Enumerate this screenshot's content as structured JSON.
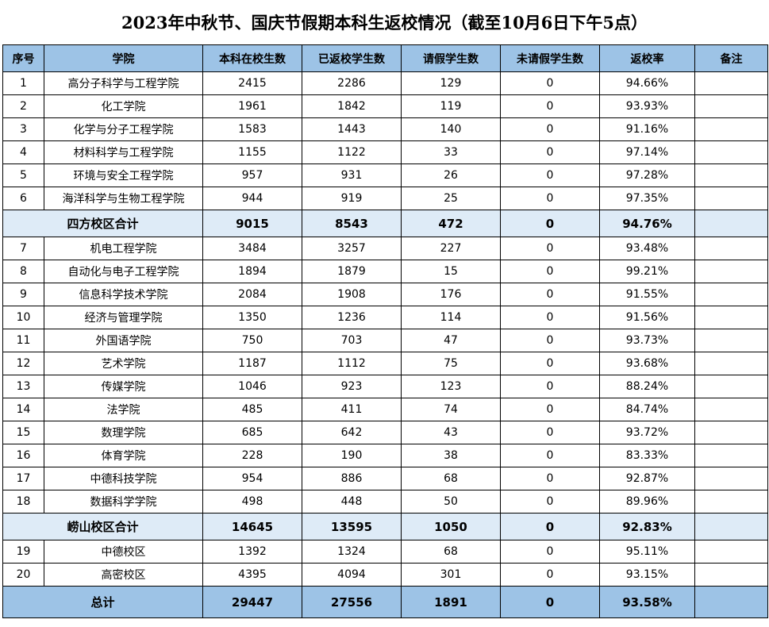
{
  "title": "2023年中秋节、国庆节假期本科生返校情况（截至10月6日下午5点）",
  "headers": [
    "序号",
    "学院",
    "本科在校生数",
    "已返校学生数",
    "请假学生数",
    "未请假学生数",
    "返校率",
    "备注"
  ],
  "group1": [
    [
      "1",
      "高分子科学与工程学院",
      "2415",
      "2286",
      "129",
      "0",
      "94.66%",
      ""
    ],
    [
      "2",
      "化工学院",
      "1961",
      "1842",
      "119",
      "0",
      "93.93%",
      ""
    ],
    [
      "3",
      "化学与分子工程学院",
      "1583",
      "1443",
      "140",
      "0",
      "91.16%",
      ""
    ],
    [
      "4",
      "材料科学与工程学院",
      "1155",
      "1122",
      "33",
      "0",
      "97.14%",
      ""
    ],
    [
      "5",
      "环境与安全工程学院",
      "957",
      "931",
      "26",
      "0",
      "97.28%",
      ""
    ],
    [
      "6",
      "海洋科学与生物工程学院",
      "944",
      "919",
      "25",
      "0",
      "97.35%",
      ""
    ]
  ],
  "subtotal1": [
    "四方校区合计",
    "9015",
    "8543",
    "472",
    "0",
    "94.76%",
    ""
  ],
  "group2": [
    [
      "7",
      "机电工程学院",
      "3484",
      "3257",
      "227",
      "0",
      "93.48%",
      ""
    ],
    [
      "8",
      "自动化与电子工程学院",
      "1894",
      "1879",
      "15",
      "0",
      "99.21%",
      ""
    ],
    [
      "9",
      "信息科学技术学院",
      "2084",
      "1908",
      "176",
      "0",
      "91.55%",
      ""
    ],
    [
      "10",
      "经济与管理学院",
      "1350",
      "1236",
      "114",
      "0",
      "91.56%",
      ""
    ],
    [
      "11",
      "外国语学院",
      "750",
      "703",
      "47",
      "0",
      "93.73%",
      ""
    ],
    [
      "12",
      "艺术学院",
      "1187",
      "1112",
      "75",
      "0",
      "93.68%",
      ""
    ],
    [
      "13",
      "传媒学院",
      "1046",
      "923",
      "123",
      "0",
      "88.24%",
      ""
    ],
    [
      "14",
      "法学院",
      "485",
      "411",
      "74",
      "0",
      "84.74%",
      ""
    ],
    [
      "15",
      "数理学院",
      "685",
      "642",
      "43",
      "0",
      "93.72%",
      ""
    ],
    [
      "16",
      "体育学院",
      "228",
      "190",
      "38",
      "0",
      "83.33%",
      ""
    ],
    [
      "17",
      "中德科技学院",
      "954",
      "886",
      "68",
      "0",
      "92.87%",
      ""
    ],
    [
      "18",
      "数据科学学院",
      "498",
      "448",
      "50",
      "0",
      "89.96%",
      ""
    ]
  ],
  "subtotal2": [
    "崂山校区合计",
    "14645",
    "13595",
    "1050",
    "0",
    "92.83%",
    ""
  ],
  "group3": [
    [
      "19",
      "中德校区",
      "1392",
      "1324",
      "68",
      "0",
      "95.11%",
      ""
    ],
    [
      "20",
      "高密校区",
      "4395",
      "4094",
      "301",
      "0",
      "93.15%",
      ""
    ]
  ],
  "total": [
    "总计",
    "29447",
    "27556",
    "1891",
    "0",
    "93.58%",
    ""
  ]
}
